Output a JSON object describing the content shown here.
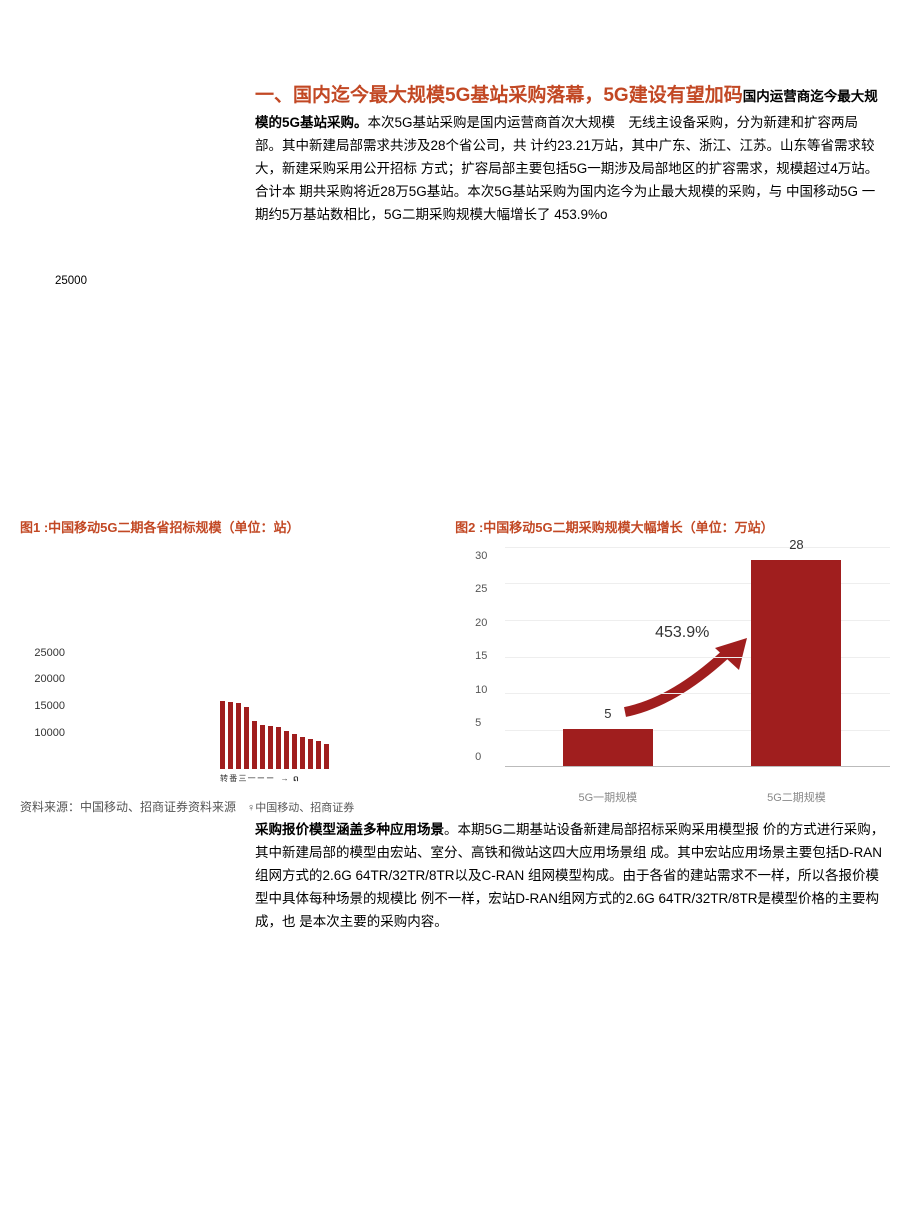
{
  "header": {
    "title_red": "一、国内迄今最大规模5G基站采购落幕，5G建设有望加码",
    "lead_bold": "国内运营商迄今最大规模的5G基站采购。",
    "body": "本次5G基站采购是国内运营商首次大规模　无线主设备采购，分为新建和扩容两局部。其中新建局部需求共涉及28个省公司，共 计约23.21万站，其中广东、浙江、江苏。山东等省需求较大，新建采购采用公开招标 方式；扩容局部主要包括5G一期涉及局部地区的扩容需求，规模超过4万站。合计本 期共采购将近28万5G基站。本次5G基站采购为国内迄今为止最大规模的采购，与 中国移动5G 一期约5万基站数相比，5G二期采购规模大幅增长了 453.9%o"
  },
  "stray": "25000",
  "fig1": {
    "title": "图1 :中国移动5G二期各省招标规模（单位：站）",
    "yticks": [
      "25000",
      "20000",
      "15000",
      "10000"
    ],
    "ytick_spacing": 22,
    "bars": [
      68,
      67,
      66,
      62,
      48,
      44,
      43,
      42,
      38,
      35,
      32,
      30,
      28,
      25
    ],
    "bar_color": "#a01e1e",
    "xlabels": "转 番 三 一 ー ー",
    "source_suffix": "　♀中国移动、招商证券"
  },
  "fig2": {
    "title": "图2 :中国移动5G二期采购规模大幅增长（单位：万站）",
    "ymax": 30,
    "yticks": [
      "30",
      "25",
      "20",
      "15",
      "10",
      "5",
      "0"
    ],
    "bars": [
      {
        "label": "5G一期规模",
        "value": 5,
        "x_pct": 15
      },
      {
        "label": "5G二期规模",
        "value": 28,
        "x_pct": 64
      }
    ],
    "bar_color": "#a01e1e",
    "growth_label": "453.9%",
    "grid_color": "#eeeeee"
  },
  "source": "资料来源：中国移动、招商证券资料来源",
  "para2": {
    "lead_bold": "采购报价模型涵盖多种应用场景",
    "body": "。本期5G二期基站设备新建局部招标采购采用模型报 价的方式进行采购，其中新建局部的模型由宏站、室分、高铁和微站这四大应用场景组 成。其中宏站应用场景主要包括D-RAN组网方式的2.6G 64TR/32TR/8TR以及C-RAN 组网模型构成。由于各省的建站需求不一样，所以各报价模型中具体每种场景的规模比 例不一样，宏站D-RAN组网方式的2.6G 64TR/32TR/8TR是模型价格的主要构成，也 是本次主要的采购内容。"
  }
}
